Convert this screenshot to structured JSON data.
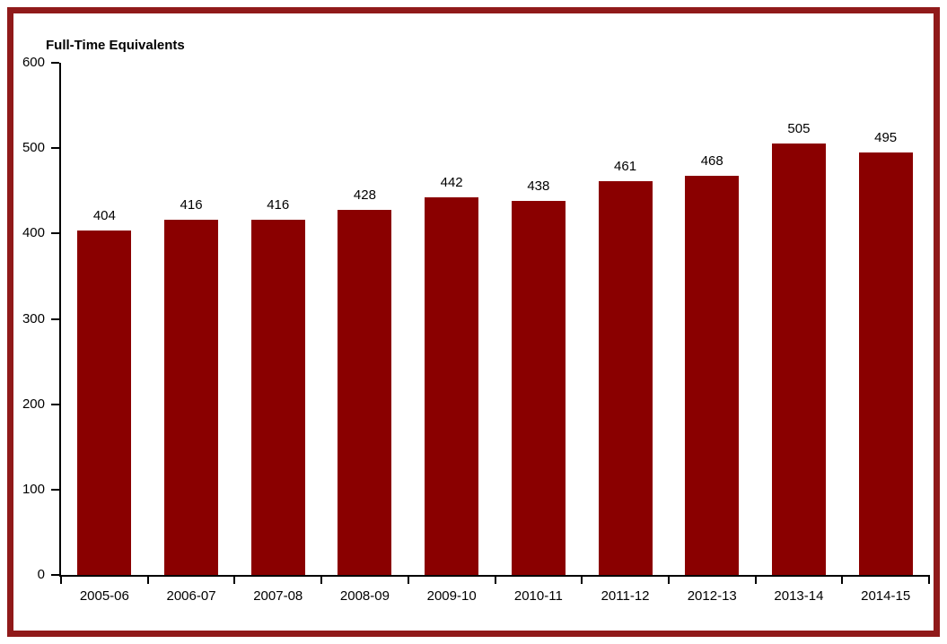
{
  "chart_data": {
    "type": "bar",
    "title": "Full-Time Equivalents",
    "categories": [
      "2005-06",
      "2006-07",
      "2007-08",
      "2008-09",
      "2009-10",
      "2010-11",
      "2011-12",
      "2012-13",
      "2013-14",
      "2014-15"
    ],
    "values": [
      404,
      416,
      416,
      428,
      442,
      438,
      461,
      468,
      505,
      495
    ],
    "xlabel": "",
    "ylabel": "",
    "ylim": [
      0,
      600
    ],
    "yticks": [
      0,
      100,
      200,
      300,
      400,
      500,
      600
    ],
    "grid": false,
    "legend": "none",
    "data_labels_shown": true,
    "colors": {
      "bar": "#8A0000",
      "frame_border": "#901A1A",
      "axis": "#000000",
      "text": "#000000",
      "background": "#FFFFFF"
    }
  }
}
